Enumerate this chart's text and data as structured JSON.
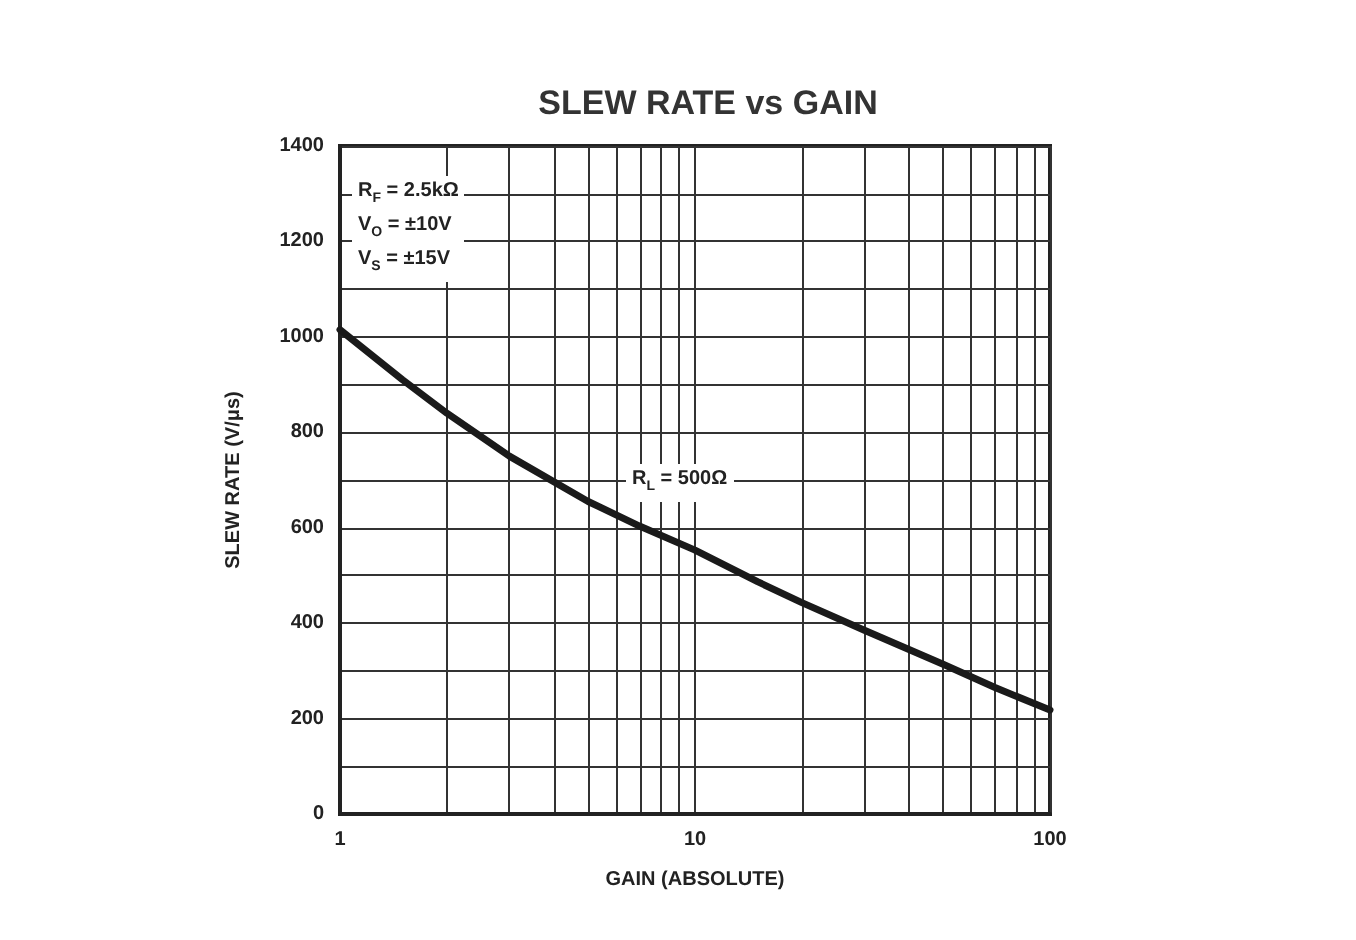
{
  "chart_data": {
    "type": "line",
    "title": "SLEW RATE vs GAIN",
    "xlabel": "GAIN (ABSOLUTE)",
    "ylabel": "SLEW RATE (V/μs)",
    "x": [
      1,
      1.5,
      2,
      3,
      5,
      7,
      10,
      15,
      20,
      30,
      50,
      70,
      100
    ],
    "series": [
      {
        "color": "#1a1a1a",
        "values": [
          1015,
          910,
          840,
          750,
          655,
          603,
          553,
          487,
          443,
          385,
          314,
          265,
          218
        ]
      }
    ],
    "log": "x",
    "xlim": [
      1,
      100
    ],
    "xticks": [
      1,
      {
        "value": 2,
        "label": null
      },
      {
        "value": 3,
        "label": null
      },
      {
        "value": 4,
        "label": null
      },
      {
        "value": 5,
        "label": null
      },
      {
        "value": 6,
        "label": null
      },
      {
        "value": 7,
        "label": null
      },
      {
        "value": 8,
        "label": null
      },
      {
        "value": 9,
        "label": null
      },
      10,
      {
        "value": 20,
        "label": null
      },
      {
        "value": 30,
        "label": null
      },
      {
        "value": 40,
        "label": null
      },
      {
        "value": 50,
        "label": null
      },
      {
        "value": 60,
        "label": null
      },
      {
        "value": 70,
        "label": null
      },
      {
        "value": 80,
        "label": null
      },
      {
        "value": 90,
        "label": null
      },
      100
    ],
    "ylim": [
      0,
      1400
    ],
    "yticks": [
      0,
      {
        "value": 100,
        "label": null
      },
      200,
      {
        "value": 300,
        "label": null
      },
      400,
      {
        "value": 500,
        "label": null
      },
      600,
      {
        "value": 700,
        "label": null
      },
      800,
      {
        "value": 900,
        "label": null
      },
      1000,
      {
        "value": 1100,
        "label": null
      },
      1200,
      {
        "value": 1300,
        "label": null
      },
      1400
    ],
    "grid": true,
    "marker": "none",
    "line_style": "solid",
    "annotations": [
      "R$_{F}$ = 2.5kΩ\nV$_{O}$ = ±10V\nV$_{S}$ = ±15V",
      "R$_{L}$ = 500Ω"
    ]
  }
}
